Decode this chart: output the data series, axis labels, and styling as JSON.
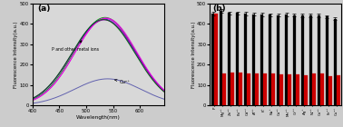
{
  "panel_a": {
    "xlabel": "Wavelength(nm)",
    "ylabel": "Fluorescence Intensity(a.u.)",
    "label_a": "(a)",
    "xlim": [
      400,
      645
    ],
    "ylim": [
      0,
      500
    ],
    "yticks": [
      0,
      100,
      200,
      300,
      400,
      500
    ],
    "annotation_high": "P and other metal ions",
    "annotation_low": "Cu²⁺",
    "high_peak": 430,
    "low_peak": 130,
    "peak_nm": 535,
    "sigma_high": 58,
    "sigma_low": 62,
    "colors_high": [
      "#009900",
      "#0000cc",
      "#cc00cc",
      "#8800aa",
      "#ee00ee",
      "#006600"
    ],
    "color_low": "#5555aa"
  },
  "panel_b": {
    "ylabel": "Fluorescence Intensity(a.u.)",
    "label_b": "(b)",
    "ylim": [
      0,
      500
    ],
    "yticks": [
      0,
      100,
      200,
      300,
      400,
      500
    ],
    "categories": [
      "P",
      "Mg",
      "Zn",
      "Pb",
      "Cd",
      "Al",
      "K",
      "Na",
      "Ca",
      "Mn",
      "Cr",
      "Ag",
      "Ni",
      "Co",
      "Fe",
      "Cu"
    ],
    "cat_labels": [
      "P",
      "Mg²⁺",
      "Zn²⁺",
      "Pb²⁺",
      "Cd²⁺",
      "Al³⁺",
      "K⁺",
      "Na⁺",
      "Ca²⁺",
      "Mn²⁺",
      "Cr³⁺",
      "Ag⁺",
      "Ni²⁺",
      "Co²⁺",
      "Fe²⁺",
      "Cu²⁺"
    ],
    "black_bars": [
      448,
      462,
      452,
      452,
      448,
      446,
      444,
      443,
      442,
      444,
      442,
      440,
      441,
      440,
      434,
      424
    ],
    "red_bars": [
      448,
      157,
      160,
      160,
      157,
      157,
      156,
      154,
      151,
      153,
      151,
      149,
      154,
      154,
      141,
      149
    ],
    "bar_width": 0.38,
    "error_vals": [
      8,
      8,
      8,
      8,
      8,
      8,
      8,
      8,
      8,
      8,
      8,
      8,
      8,
      8,
      8,
      8
    ]
  },
  "bg_color": "#d8d8d8",
  "fig_bg": "#cccccc"
}
